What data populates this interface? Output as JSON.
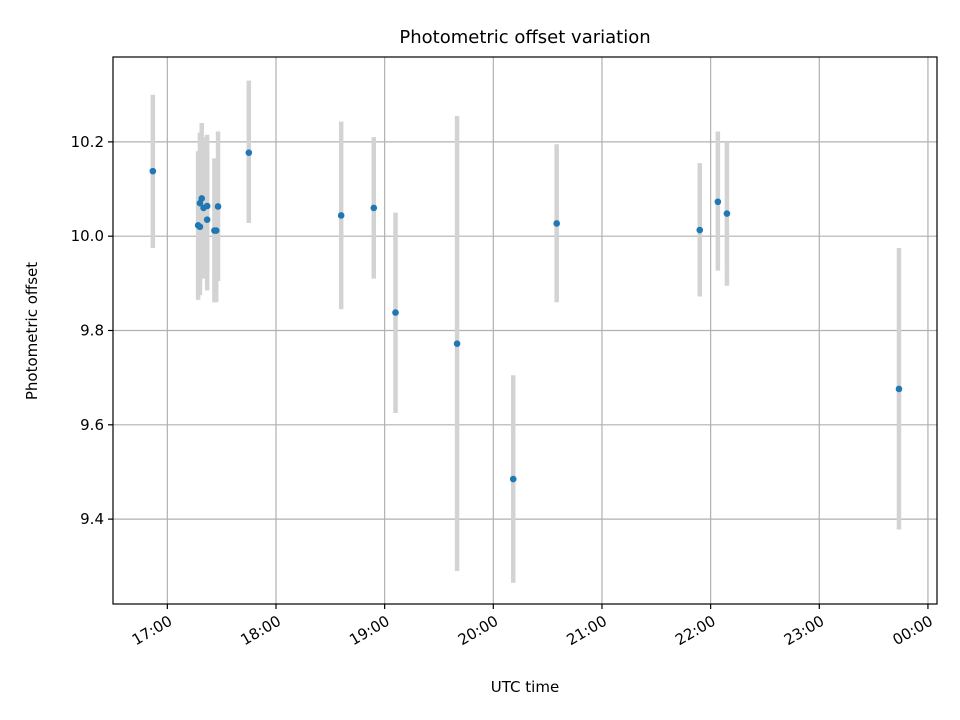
{
  "chart_data": {
    "type": "scatter",
    "title": "Photometric offset variation",
    "xlabel": "UTC time",
    "ylabel": "Photometric offset",
    "xlim": [
      "16:30",
      "00:05"
    ],
    "ylim": [
      9.22,
      10.38
    ],
    "grid": true,
    "x_ticks": [
      "17:00",
      "18:00",
      "19:00",
      "20:00",
      "21:00",
      "22:00",
      "23:00",
      "00:00"
    ],
    "y_ticks": [
      9.4,
      9.6,
      9.8,
      10.0,
      10.2
    ],
    "y_tick_labels": [
      "9.4",
      "9.6",
      "9.8",
      "10.0",
      "10.2"
    ],
    "point_color": "#1f77b4",
    "errorbar_color": "#d3d3d3",
    "points": [
      {
        "x": "16:52",
        "y": 10.138,
        "ylow": 9.975,
        "yhigh": 10.3
      },
      {
        "x": "17:17",
        "y": 10.023,
        "ylow": 9.865,
        "yhigh": 10.18
      },
      {
        "x": "17:18",
        "y": 10.02,
        "ylow": 9.875,
        "yhigh": 10.165
      },
      {
        "x": "17:18",
        "y": 10.07,
        "ylow": 9.9,
        "yhigh": 10.22
      },
      {
        "x": "17:19",
        "y": 10.08,
        "ylow": 9.92,
        "yhigh": 10.24
      },
      {
        "x": "17:20",
        "y": 10.06,
        "ylow": 9.91,
        "yhigh": 10.21
      },
      {
        "x": "17:22",
        "y": 10.064,
        "ylow": 9.915,
        "yhigh": 10.215
      },
      {
        "x": "17:22",
        "y": 10.035,
        "ylow": 9.885,
        "yhigh": 10.185
      },
      {
        "x": "17:26",
        "y": 10.012,
        "ylow": 9.86,
        "yhigh": 10.165
      },
      {
        "x": "17:27",
        "y": 10.012,
        "ylow": 9.86,
        "yhigh": 10.165
      },
      {
        "x": "17:28",
        "y": 10.063,
        "ylow": 9.905,
        "yhigh": 10.222
      },
      {
        "x": "17:45",
        "y": 10.177,
        "ylow": 10.028,
        "yhigh": 10.33
      },
      {
        "x": "18:36",
        "y": 10.044,
        "ylow": 9.845,
        "yhigh": 10.243
      },
      {
        "x": "18:54",
        "y": 10.06,
        "ylow": 9.91,
        "yhigh": 10.21
      },
      {
        "x": "19:06",
        "y": 9.838,
        "ylow": 9.625,
        "yhigh": 10.05
      },
      {
        "x": "19:40",
        "y": 9.772,
        "ylow": 9.29,
        "yhigh": 10.255
      },
      {
        "x": "20:11",
        "y": 9.485,
        "ylow": 9.265,
        "yhigh": 9.705
      },
      {
        "x": "20:35",
        "y": 10.027,
        "ylow": 9.86,
        "yhigh": 10.195
      },
      {
        "x": "21:54",
        "y": 10.013,
        "ylow": 9.872,
        "yhigh": 10.155
      },
      {
        "x": "22:04",
        "y": 10.073,
        "ylow": 9.927,
        "yhigh": 10.222
      },
      {
        "x": "22:09",
        "y": 10.048,
        "ylow": 9.895,
        "yhigh": 10.2
      },
      {
        "x": "23:44",
        "y": 9.676,
        "ylow": 9.378,
        "yhigh": 9.975
      }
    ]
  }
}
